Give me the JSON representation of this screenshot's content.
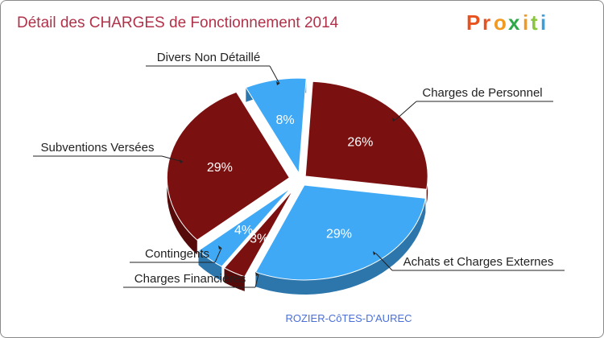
{
  "chart_data": {
    "type": "pie",
    "title": "Détail des CHARGES de Fonctionnement 2014",
    "subtitle": "ROZIER-CôTES-D'AUREC",
    "slices": [
      {
        "label": "Charges de Personnel",
        "value": 26,
        "color": "#7b1010"
      },
      {
        "label": "Achats et Charges Externes",
        "value": 29,
        "color": "#3fa9f5"
      },
      {
        "label": "Charges Financières",
        "value": 3,
        "color": "#7b1010"
      },
      {
        "label": "Contingents",
        "value": 4,
        "color": "#3fa9f5"
      },
      {
        "label": "Subventions Versées",
        "value": 29,
        "color": "#7b1010"
      },
      {
        "label": "Divers Non Détaillé",
        "value": 8,
        "color": "#3fa9f5"
      }
    ],
    "unit": "%"
  },
  "logo": {
    "letters": [
      "P",
      "r",
      "o",
      "x",
      "i",
      "t",
      "i"
    ],
    "colors": [
      "#e8521f",
      "#e8521f",
      "#f29a1f",
      "#2fa84a",
      "#f29a1f",
      "#8bc53f",
      "#3aa0dc"
    ]
  }
}
